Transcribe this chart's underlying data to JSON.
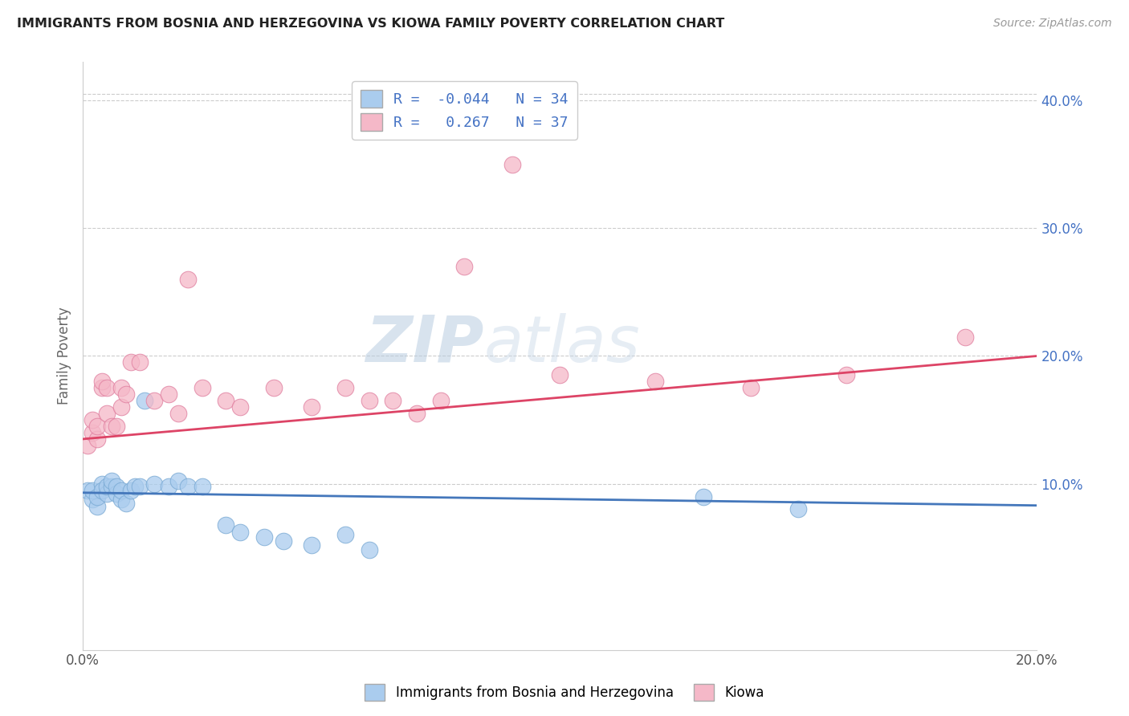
{
  "title": "IMMIGRANTS FROM BOSNIA AND HERZEGOVINA VS KIOWA FAMILY POVERTY CORRELATION CHART",
  "source": "Source: ZipAtlas.com",
  "ylabel": "Family Poverty",
  "x_min": 0.0,
  "x_max": 0.2,
  "y_min": -0.03,
  "y_max": 0.43,
  "y_ticks_right": [
    0.1,
    0.2,
    0.3,
    0.4
  ],
  "y_tick_labels_right": [
    "10.0%",
    "20.0%",
    "30.0%",
    "40.0%"
  ],
  "blue_R": -0.044,
  "blue_N": 34,
  "pink_R": 0.267,
  "pink_N": 37,
  "blue_color": "#aaccee",
  "blue_edge": "#7aaad4",
  "pink_color": "#f5b8c8",
  "pink_edge": "#e080a0",
  "blue_line_color": "#4477bb",
  "pink_line_color": "#dd4466",
  "legend_label_blue": "Immigrants from Bosnia and Herzegovina",
  "legend_label_pink": "Kiowa",
  "watermark_zip": "ZIP",
  "watermark_atlas": "atlas",
  "blue_x": [
    0.001,
    0.002,
    0.002,
    0.003,
    0.003,
    0.004,
    0.004,
    0.005,
    0.005,
    0.006,
    0.006,
    0.007,
    0.007,
    0.008,
    0.008,
    0.009,
    0.01,
    0.011,
    0.012,
    0.013,
    0.015,
    0.018,
    0.02,
    0.022,
    0.025,
    0.03,
    0.033,
    0.038,
    0.042,
    0.048,
    0.055,
    0.06,
    0.13,
    0.15
  ],
  "blue_y": [
    0.095,
    0.088,
    0.095,
    0.082,
    0.09,
    0.1,
    0.095,
    0.092,
    0.098,
    0.098,
    0.102,
    0.092,
    0.098,
    0.088,
    0.095,
    0.085,
    0.095,
    0.098,
    0.098,
    0.165,
    0.1,
    0.098,
    0.102,
    0.098,
    0.098,
    0.068,
    0.062,
    0.058,
    0.055,
    0.052,
    0.06,
    0.048,
    0.09,
    0.08
  ],
  "pink_x": [
    0.001,
    0.002,
    0.002,
    0.003,
    0.003,
    0.004,
    0.004,
    0.005,
    0.005,
    0.006,
    0.007,
    0.008,
    0.008,
    0.009,
    0.01,
    0.012,
    0.015,
    0.018,
    0.02,
    0.022,
    0.025,
    0.03,
    0.033,
    0.04,
    0.048,
    0.055,
    0.06,
    0.065,
    0.07,
    0.075,
    0.08,
    0.09,
    0.1,
    0.12,
    0.14,
    0.16,
    0.185
  ],
  "pink_y": [
    0.13,
    0.14,
    0.15,
    0.135,
    0.145,
    0.175,
    0.18,
    0.155,
    0.175,
    0.145,
    0.145,
    0.16,
    0.175,
    0.17,
    0.195,
    0.195,
    0.165,
    0.17,
    0.155,
    0.26,
    0.175,
    0.165,
    0.16,
    0.175,
    0.16,
    0.175,
    0.165,
    0.165,
    0.155,
    0.165,
    0.27,
    0.35,
    0.185,
    0.18,
    0.175,
    0.185,
    0.215
  ],
  "blue_line_x0": 0.0,
  "blue_line_y0": 0.093,
  "blue_line_x1": 0.2,
  "blue_line_y1": 0.083,
  "pink_line_x0": 0.0,
  "pink_line_y0": 0.135,
  "pink_line_x1": 0.2,
  "pink_line_y1": 0.2
}
